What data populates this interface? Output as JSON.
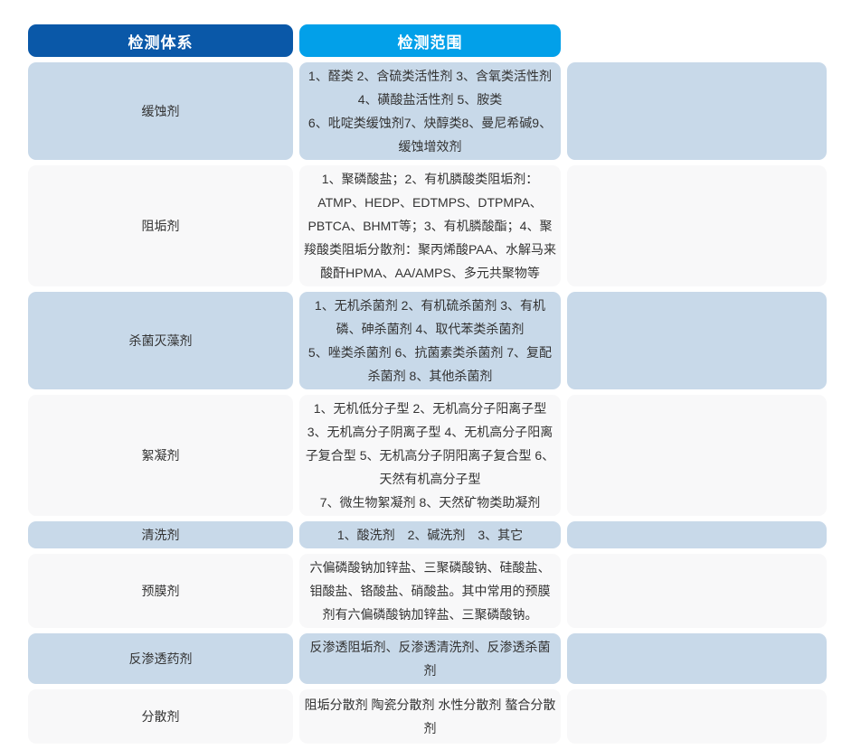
{
  "table": {
    "header": {
      "system_label": "检测体系",
      "scope_label": "检测范围"
    },
    "colors": {
      "system_header_bg": "#0a58a8",
      "scope_header_bg": "#02a0e9",
      "row_blue_bg": "#c8d9e9",
      "row_light_bg": "#f8f8f9",
      "header_text": "#ffffff",
      "body_text": "#333333"
    },
    "rows": [
      {
        "system": "缓蚀剂",
        "scope": "1、醛类 2、含硫类活性剂 3、含氧类活性剂 4、磺酸盐活性剂 5、胺类\n6、吡啶类缓蚀剂7、炔醇类8、曼尼希碱9、缓蚀增效剂"
      },
      {
        "system": "阻垢剂",
        "scope": "1、聚磷酸盐；2、有机膦酸类阻垢剂：ATMP、HEDP、EDTMPS、DTPMPA、PBTCA、BHMT等；3、有机膦酸酯；4、聚羧酸类阻垢分散剂：聚丙烯酸PAA、水解马来酸酐HPMA、AA/AMPS、多元共聚物等"
      },
      {
        "system": "杀菌灭藻剂",
        "scope": "1、无机杀菌剂 2、有机硫杀菌剂 3、有机磷、砷杀菌剂 4、取代苯类杀菌剂\n5、唑类杀菌剂 6、抗菌素类杀菌剂 7、复配杀菌剂 8、其他杀菌剂"
      },
      {
        "system": "絮凝剂",
        "scope": "1、无机低分子型 2、无机高分子阳离子型 3、无机高分子阴离子型 4、无机高分子阳离子复合型 5、无机高分子阴阳离子复合型 6、天然有机高分子型\n7、微生物絮凝剂 8、天然矿物类助凝剂"
      },
      {
        "system": "清洗剂",
        "scope": "1、酸洗剂　2、碱洗剂　3、其它"
      },
      {
        "system": "预膜剂",
        "scope": "六偏磷酸钠加锌盐、三聚磷酸钠、硅酸盐、钼酸盐、铬酸盐、硝酸盐。其中常用的预膜剂有六偏磷酸钠加锌盐、三聚磷酸钠。"
      },
      {
        "system": "反渗透药剂",
        "scope": "反渗透阻垢剂、反渗透清洗剂、反渗透杀菌剂"
      },
      {
        "system": "分散剂",
        "scope": "阻垢分散剂 陶瓷分散剂 水性分散剂 螯合分散剂"
      }
    ]
  }
}
